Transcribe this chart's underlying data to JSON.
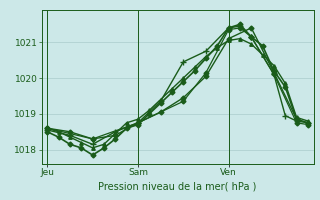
{
  "bg_color": "#cce8e8",
  "grid_color": "#aacccc",
  "line_color": "#1a5c1a",
  "title": "Pression niveau de la mer( hPa )",
  "xtick_labels": [
    "Jeu",
    "Sam",
    "Ven"
  ],
  "xtick_positions": [
    0,
    8,
    16
  ],
  "ylim": [
    1017.6,
    1021.9
  ],
  "yticks": [
    1018,
    1019,
    1020,
    1021
  ],
  "series": [
    {
      "x": [
        0,
        1,
        2,
        3,
        4,
        5,
        6,
        7,
        8,
        9,
        10,
        11,
        12,
        13,
        14,
        15,
        16,
        17,
        18,
        19,
        20,
        21,
        22,
        23
      ],
      "y": [
        1018.5,
        1018.35,
        1018.15,
        1018.05,
        1017.85,
        1018.05,
        1018.3,
        1018.6,
        1018.7,
        1019.0,
        1019.3,
        1019.6,
        1019.9,
        1020.2,
        1020.55,
        1020.9,
        1021.4,
        1021.5,
        1021.15,
        1020.9,
        1020.2,
        1019.75,
        1018.85,
        1018.75
      ],
      "marker": "D",
      "ms": 2.5,
      "lw": 1.2
    },
    {
      "x": [
        0,
        1,
        2,
        3,
        4,
        5,
        6,
        7,
        8,
        9,
        10,
        11,
        12,
        13,
        14,
        15,
        16,
        17,
        18,
        19,
        20,
        21,
        22,
        23
      ],
      "y": [
        1018.6,
        1018.5,
        1018.35,
        1018.2,
        1018.05,
        1018.15,
        1018.45,
        1018.75,
        1018.85,
        1019.1,
        1019.4,
        1019.7,
        1020.0,
        1020.3,
        1020.6,
        1020.85,
        1021.05,
        1021.1,
        1020.95,
        1020.65,
        1020.35,
        1019.85,
        1018.9,
        1018.8
      ],
      "marker": "^",
      "ms": 2.5,
      "lw": 1.0
    },
    {
      "x": [
        0,
        2,
        4,
        6,
        8,
        10,
        12,
        14,
        16,
        18,
        20,
        22
      ],
      "y": [
        1018.6,
        1018.5,
        1018.3,
        1018.4,
        1018.75,
        1019.05,
        1019.45,
        1020.05,
        1021.1,
        1021.4,
        1020.15,
        1018.85
      ],
      "marker": "D",
      "ms": 2.5,
      "lw": 1.0
    },
    {
      "x": [
        0,
        2,
        4,
        6,
        8,
        10,
        12,
        14,
        16,
        17,
        18,
        20,
        21,
        22,
        23
      ],
      "y": [
        1018.55,
        1018.4,
        1018.15,
        1018.5,
        1018.75,
        1019.35,
        1020.45,
        1020.75,
        1021.4,
        1021.45,
        1021.15,
        1020.1,
        1018.95,
        1018.8,
        1018.75
      ],
      "marker": "+",
      "ms": 4,
      "lw": 1.0
    },
    {
      "x": [
        0,
        4,
        8,
        12,
        14,
        16,
        17,
        18,
        20,
        22,
        23
      ],
      "y": [
        1018.6,
        1018.3,
        1018.75,
        1019.35,
        1020.15,
        1021.35,
        1021.4,
        1021.15,
        1020.1,
        1018.75,
        1018.7
      ],
      "marker": "D",
      "ms": 2.5,
      "lw": 0.9
    }
  ],
  "vlines_x": [
    0,
    8,
    16
  ],
  "xlim": [
    -0.5,
    23.5
  ],
  "title_fontsize": 7,
  "tick_fontsize": 6.5,
  "figsize": [
    3.2,
    2.0
  ],
  "dpi": 100
}
